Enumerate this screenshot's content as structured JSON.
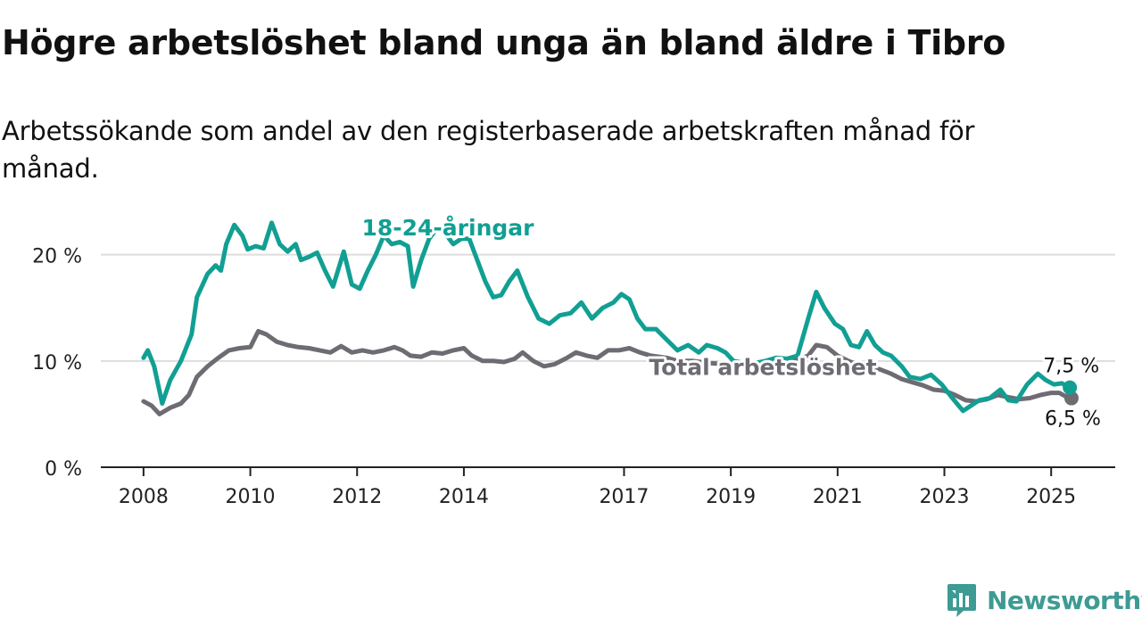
{
  "header": {
    "title": "Högre arbetslöshet bland unga än bland äldre i Tibro",
    "subtitle": "Arbetssökande som andel av den registerbaserade arbetskraften månad för månad."
  },
  "brand": {
    "name": "Newsworthy"
  },
  "colors": {
    "youth": "#129f93",
    "total": "#6e6b73",
    "grid": "#dddddd",
    "axis": "#222222"
  },
  "chart_data": {
    "type": "line",
    "title": "Högre arbetslöshet bland unga än bland äldre i Tibro",
    "subtitle": "Arbetssökande som andel av den registerbaserade arbetskraften månad för månad.",
    "x_ticks": [
      {
        "label": "2008",
        "value": 2008
      },
      {
        "label": "2010",
        "value": 2010
      },
      {
        "label": "2012",
        "value": 2012
      },
      {
        "label": "2014",
        "value": 2014
      },
      {
        "label": "2017",
        "value": 2017
      },
      {
        "label": "2019",
        "value": 2019
      },
      {
        "label": "2021",
        "value": 2021
      },
      {
        "label": "2023",
        "value": 2023
      },
      {
        "label": "2025",
        "value": 2025
      }
    ],
    "y_ticks": [
      {
        "label": "0 %",
        "value": 0
      },
      {
        "label": "10 %",
        "value": 10
      },
      {
        "label": "20 %",
        "value": 20
      }
    ],
    "xlim": [
      2007.2,
      2026.2
    ],
    "ylim": [
      0,
      24
    ],
    "grid": true,
    "series": [
      {
        "name": "18-24-åringar",
        "end_label": "7,5 %",
        "points": [
          [
            2008.0,
            10.3
          ],
          [
            2008.08,
            11.0
          ],
          [
            2008.2,
            9.5
          ],
          [
            2008.35,
            6.0
          ],
          [
            2008.5,
            8.2
          ],
          [
            2008.7,
            10.0
          ],
          [
            2008.9,
            12.5
          ],
          [
            2009.0,
            16.0
          ],
          [
            2009.2,
            18.2
          ],
          [
            2009.35,
            19.0
          ],
          [
            2009.45,
            18.5
          ],
          [
            2009.55,
            21.0
          ],
          [
            2009.7,
            22.8
          ],
          [
            2009.85,
            21.8
          ],
          [
            2009.95,
            20.5
          ],
          [
            2010.1,
            20.8
          ],
          [
            2010.25,
            20.6
          ],
          [
            2010.4,
            23.0
          ],
          [
            2010.55,
            21.0
          ],
          [
            2010.7,
            20.3
          ],
          [
            2010.85,
            21.0
          ],
          [
            2010.95,
            19.5
          ],
          [
            2011.1,
            19.8
          ],
          [
            2011.25,
            20.2
          ],
          [
            2011.4,
            18.5
          ],
          [
            2011.55,
            17.0
          ],
          [
            2011.75,
            20.3
          ],
          [
            2011.9,
            17.2
          ],
          [
            2012.05,
            16.8
          ],
          [
            2012.2,
            18.5
          ],
          [
            2012.35,
            20.0
          ],
          [
            2012.5,
            21.8
          ],
          [
            2012.65,
            21.0
          ],
          [
            2012.8,
            21.2
          ],
          [
            2012.95,
            20.8
          ],
          [
            2013.05,
            17.0
          ],
          [
            2013.2,
            19.5
          ],
          [
            2013.35,
            21.5
          ],
          [
            2013.5,
            22.5
          ],
          [
            2013.65,
            22.0
          ],
          [
            2013.8,
            21.0
          ],
          [
            2013.95,
            21.5
          ],
          [
            2014.1,
            21.5
          ],
          [
            2014.25,
            19.5
          ],
          [
            2014.4,
            17.5
          ],
          [
            2014.55,
            16.0
          ],
          [
            2014.7,
            16.2
          ],
          [
            2014.85,
            17.5
          ],
          [
            2015.0,
            18.5
          ],
          [
            2015.2,
            16.0
          ],
          [
            2015.4,
            14.0
          ],
          [
            2015.6,
            13.5
          ],
          [
            2015.8,
            14.3
          ],
          [
            2016.0,
            14.5
          ],
          [
            2016.2,
            15.5
          ],
          [
            2016.4,
            14.0
          ],
          [
            2016.6,
            15.0
          ],
          [
            2016.8,
            15.5
          ],
          [
            2016.95,
            16.3
          ],
          [
            2017.1,
            15.8
          ],
          [
            2017.25,
            14.0
          ],
          [
            2017.4,
            13.0
          ],
          [
            2017.6,
            13.0
          ],
          [
            2017.8,
            12.0
          ],
          [
            2018.0,
            11.0
          ],
          [
            2018.2,
            11.5
          ],
          [
            2018.4,
            10.8
          ],
          [
            2018.55,
            11.5
          ],
          [
            2018.75,
            11.2
          ],
          [
            2018.9,
            10.8
          ],
          [
            2019.05,
            10.0
          ],
          [
            2019.25,
            9.8
          ],
          [
            2019.45,
            9.8
          ],
          [
            2019.65,
            10.0
          ],
          [
            2019.85,
            10.3
          ],
          [
            2020.05,
            10.2
          ],
          [
            2020.25,
            10.5
          ],
          [
            2020.45,
            14.0
          ],
          [
            2020.6,
            16.5
          ],
          [
            2020.75,
            15.0
          ],
          [
            2020.95,
            13.5
          ],
          [
            2021.1,
            13.0
          ],
          [
            2021.25,
            11.5
          ],
          [
            2021.4,
            11.3
          ],
          [
            2021.55,
            12.8
          ],
          [
            2021.7,
            11.5
          ],
          [
            2021.85,
            10.8
          ],
          [
            2022.0,
            10.5
          ],
          [
            2022.2,
            9.5
          ],
          [
            2022.35,
            8.5
          ],
          [
            2022.55,
            8.3
          ],
          [
            2022.75,
            8.7
          ],
          [
            2022.95,
            7.8
          ],
          [
            2023.15,
            6.5
          ],
          [
            2023.35,
            5.3
          ],
          [
            2023.5,
            5.8
          ],
          [
            2023.65,
            6.3
          ],
          [
            2023.85,
            6.5
          ],
          [
            2024.05,
            7.3
          ],
          [
            2024.2,
            6.3
          ],
          [
            2024.35,
            6.2
          ],
          [
            2024.55,
            7.8
          ],
          [
            2024.75,
            8.8
          ],
          [
            2024.9,
            8.2
          ],
          [
            2025.05,
            7.8
          ],
          [
            2025.2,
            7.9
          ],
          [
            2025.35,
            7.5
          ]
        ]
      },
      {
        "name": "Total arbetslöshet",
        "end_label": "6,5 %",
        "points": [
          [
            2008.0,
            6.2
          ],
          [
            2008.15,
            5.8
          ],
          [
            2008.3,
            5.0
          ],
          [
            2008.5,
            5.6
          ],
          [
            2008.7,
            6.0
          ],
          [
            2008.85,
            6.8
          ],
          [
            2009.0,
            8.5
          ],
          [
            2009.2,
            9.5
          ],
          [
            2009.4,
            10.3
          ],
          [
            2009.6,
            11.0
          ],
          [
            2009.8,
            11.2
          ],
          [
            2010.0,
            11.3
          ],
          [
            2010.15,
            12.8
          ],
          [
            2010.3,
            12.5
          ],
          [
            2010.5,
            11.8
          ],
          [
            2010.7,
            11.5
          ],
          [
            2010.9,
            11.3
          ],
          [
            2011.1,
            11.2
          ],
          [
            2011.3,
            11.0
          ],
          [
            2011.5,
            10.8
          ],
          [
            2011.7,
            11.4
          ],
          [
            2011.9,
            10.8
          ],
          [
            2012.1,
            11.0
          ],
          [
            2012.3,
            10.8
          ],
          [
            2012.5,
            11.0
          ],
          [
            2012.7,
            11.3
          ],
          [
            2012.85,
            11.0
          ],
          [
            2013.0,
            10.5
          ],
          [
            2013.2,
            10.4
          ],
          [
            2013.4,
            10.8
          ],
          [
            2013.6,
            10.7
          ],
          [
            2013.8,
            11.0
          ],
          [
            2014.0,
            11.2
          ],
          [
            2014.15,
            10.5
          ],
          [
            2014.35,
            10.0
          ],
          [
            2014.55,
            10.0
          ],
          [
            2014.75,
            9.9
          ],
          [
            2014.95,
            10.2
          ],
          [
            2015.1,
            10.8
          ],
          [
            2015.3,
            10.0
          ],
          [
            2015.5,
            9.5
          ],
          [
            2015.7,
            9.7
          ],
          [
            2015.9,
            10.2
          ],
          [
            2016.1,
            10.8
          ],
          [
            2016.3,
            10.5
          ],
          [
            2016.5,
            10.3
          ],
          [
            2016.7,
            11.0
          ],
          [
            2016.9,
            11.0
          ],
          [
            2017.1,
            11.2
          ],
          [
            2017.3,
            10.8
          ],
          [
            2017.5,
            10.5
          ],
          [
            2017.8,
            10.3
          ],
          [
            2018.0,
            10.0
          ],
          [
            2018.3,
            10.0
          ],
          [
            2018.6,
            9.8
          ],
          [
            2018.9,
            9.7
          ],
          [
            2019.2,
            9.7
          ],
          [
            2019.5,
            9.6
          ],
          [
            2019.8,
            9.8
          ],
          [
            2020.0,
            9.9
          ],
          [
            2020.2,
            10.0
          ],
          [
            2020.45,
            10.5
          ],
          [
            2020.6,
            11.5
          ],
          [
            2020.8,
            11.3
          ],
          [
            2021.0,
            10.5
          ],
          [
            2021.2,
            10.0
          ],
          [
            2021.4,
            9.6
          ],
          [
            2021.6,
            9.5
          ],
          [
            2021.8,
            9.2
          ],
          [
            2022.0,
            8.8
          ],
          [
            2022.2,
            8.3
          ],
          [
            2022.4,
            8.0
          ],
          [
            2022.6,
            7.7
          ],
          [
            2022.8,
            7.3
          ],
          [
            2023.0,
            7.2
          ],
          [
            2023.2,
            6.8
          ],
          [
            2023.4,
            6.3
          ],
          [
            2023.6,
            6.2
          ],
          [
            2023.8,
            6.4
          ],
          [
            2024.0,
            6.8
          ],
          [
            2024.2,
            6.6
          ],
          [
            2024.4,
            6.4
          ],
          [
            2024.6,
            6.5
          ],
          [
            2024.8,
            6.8
          ],
          [
            2025.0,
            7.0
          ],
          [
            2025.15,
            7.0
          ],
          [
            2025.3,
            6.6
          ],
          [
            2025.38,
            6.5
          ]
        ]
      }
    ]
  }
}
